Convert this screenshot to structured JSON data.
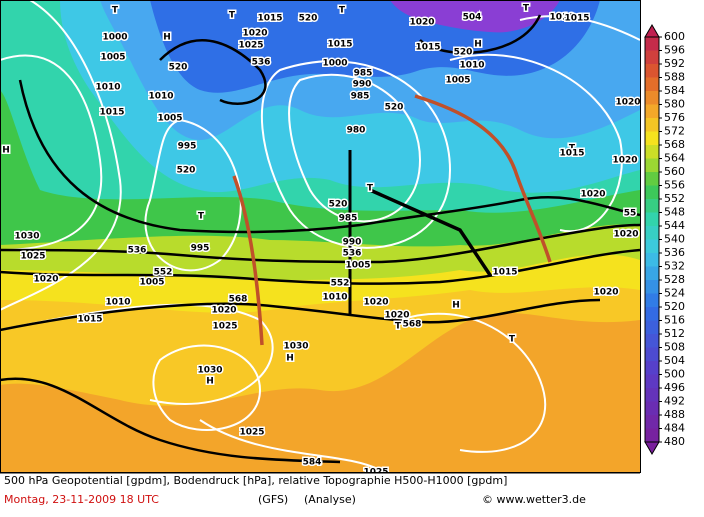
{
  "map": {
    "labels": [
      "T",
      "T",
      "1015",
      "520",
      "T",
      "1020",
      "504",
      "T",
      "1010",
      "1015",
      "H",
      "1000",
      "1020",
      "1025",
      "1015",
      "520",
      "H",
      "1015",
      "1005",
      "536",
      "1000",
      "1010",
      "520",
      "985",
      "990",
      "1005",
      "1010",
      "985",
      "520",
      "1020",
      "1010",
      "1015",
      "1005",
      "980",
      "T",
      "1015",
      "995",
      "1020",
      "H",
      "520",
      "T",
      "1020",
      "520",
      "55",
      "T",
      "985",
      "1030",
      "990",
      "536",
      "995",
      "536",
      "1025",
      "1020",
      "1005",
      "552",
      "1005",
      "552",
      "1015",
      "1010",
      "1020",
      "1020",
      "H",
      "1020",
      "568",
      "1010",
      "1015",
      "1020",
      "1025",
      "1020",
      "T",
      "568",
      "T",
      "1030",
      "H",
      "1030",
      "H",
      "1025",
      "584",
      "1025"
    ]
  },
  "colorbar": {
    "levels": [
      600,
      596,
      592,
      588,
      584,
      580,
      576,
      572,
      568,
      564,
      560,
      556,
      552,
      548,
      544,
      540,
      536,
      532,
      528,
      524,
      520,
      516,
      512,
      508,
      504,
      500,
      496,
      492,
      488,
      484,
      480
    ]
  },
  "footer": {
    "description": "500 hPa Geopotential [gpdm], Bodendruck [hPa], relative Topographie H500-H1000 [gpdm]",
    "date": "Montag, 23-11-2009  18 UTC",
    "model": "(GFS)",
    "analysis": "(Analyse)",
    "credit": "© www.wetter3.de"
  }
}
